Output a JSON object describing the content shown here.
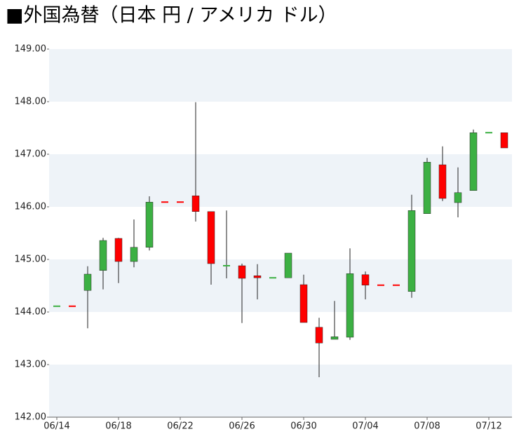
{
  "chart_data": {
    "type": "candlestick",
    "title": "■外国為替（日本 円 / アメリカ ドル）",
    "categories": [
      "06/14",
      null,
      null,
      null,
      "06/18",
      null,
      null,
      null,
      "06/22",
      null,
      null,
      null,
      "06/26",
      null,
      null,
      null,
      "06/30",
      null,
      null,
      null,
      "07/04",
      null,
      null,
      null,
      "07/08",
      null,
      null,
      null,
      "07/12",
      null
    ],
    "open": [
      144.11,
      144.11,
      144.41,
      144.79,
      145.4,
      144.96,
      145.23,
      146.09,
      146.09,
      146.21,
      145.91,
      144.88,
      144.88,
      144.69,
      144.65,
      144.65,
      144.52,
      143.71,
      143.48,
      143.52,
      144.71,
      144.51,
      144.51,
      144.39,
      145.87,
      146.8,
      146.08,
      146.31,
      147.41,
      147.41
    ],
    "high": [
      144.11,
      144.11,
      144.87,
      145.41,
      145.41,
      145.76,
      146.2,
      146.09,
      146.09,
      147.99,
      145.91,
      145.93,
      144.92,
      144.91,
      144.65,
      145.12,
      144.71,
      143.89,
      144.21,
      145.21,
      144.77,
      144.51,
      144.51,
      146.23,
      146.93,
      147.15,
      146.75,
      147.47,
      147.41,
      147.41
    ],
    "low": [
      144.11,
      144.11,
      143.69,
      144.43,
      144.55,
      144.85,
      145.17,
      146.09,
      146.09,
      145.72,
      144.52,
      144.64,
      143.79,
      144.24,
      144.65,
      144.65,
      143.8,
      142.76,
      143.48,
      143.47,
      144.24,
      144.51,
      144.51,
      144.27,
      145.87,
      146.11,
      145.8,
      146.31,
      147.41,
      147.12
    ],
    "close": [
      144.11,
      144.11,
      144.72,
      145.36,
      144.96,
      145.23,
      146.09,
      146.09,
      146.09,
      145.91,
      144.92,
      144.88,
      144.64,
      144.65,
      144.65,
      145.12,
      143.8,
      143.41,
      143.53,
      144.73,
      144.51,
      144.51,
      144.51,
      145.93,
      146.85,
      146.16,
      146.27,
      147.41,
      147.41,
      147.12
    ],
    "colors": [
      "#3cb043",
      "#ff0000",
      "#3cb043",
      "#3cb043",
      "#ff0000",
      "#3cb043",
      "#3cb043",
      "#ff0000",
      "#ff0000",
      "#ff0000",
      "#ff0000",
      "#3cb043",
      "#ff0000",
      "#ff0000",
      "#3cb043",
      "#3cb043",
      "#ff0000",
      "#ff0000",
      "#3cb043",
      "#3cb043",
      "#ff0000",
      "#ff0000",
      "#ff0000",
      "#3cb043",
      "#3cb043",
      "#ff0000",
      "#3cb043",
      "#3cb043",
      "#3cb043",
      "#ff0000"
    ],
    "ylim": [
      142,
      149
    ],
    "yticks": [
      {
        "value": 142,
        "label": "142.00"
      },
      {
        "value": 143,
        "label": "143.00"
      },
      {
        "value": 144,
        "label": "144.00"
      },
      {
        "value": 145,
        "label": "145.00"
      },
      {
        "value": 146,
        "label": "146.00"
      },
      {
        "value": 147,
        "label": "147.00"
      },
      {
        "value": 148,
        "label": "148.00"
      },
      {
        "value": 149,
        "label": "149.00"
      }
    ],
    "band_color": "#eef3f8"
  }
}
